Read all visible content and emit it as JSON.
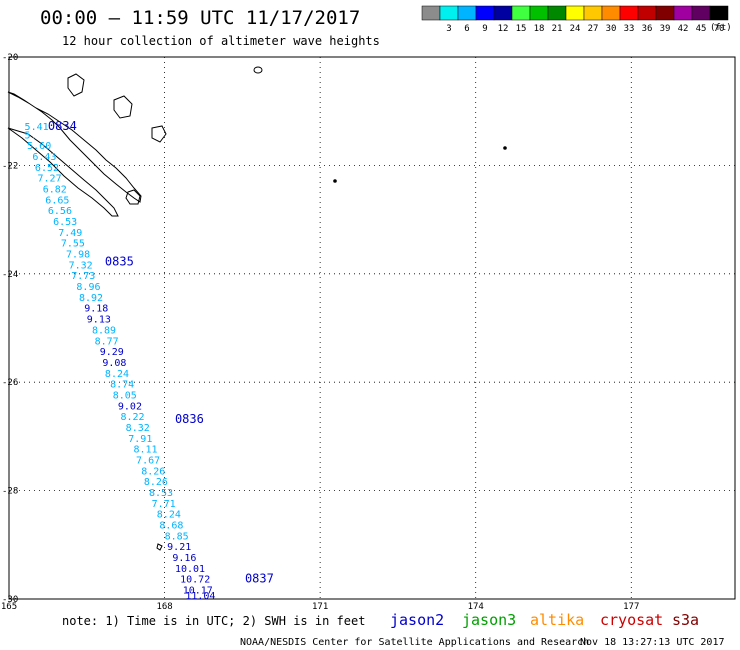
{
  "header": {
    "title": "00:00 – 11:59 UTC 11/17/2017",
    "subtitle": "12 hour collection of altimeter wave heights"
  },
  "legend": {
    "units": "(ft)",
    "swatches": [
      {
        "color": "#8c8c8c",
        "label": ""
      },
      {
        "color": "#00f0f0",
        "label": "3"
      },
      {
        "color": "#00b4ff",
        "label": "6"
      },
      {
        "color": "#0000ff",
        "label": "9"
      },
      {
        "color": "#0000a0",
        "label": "12"
      },
      {
        "color": "#40ff40",
        "label": "15"
      },
      {
        "color": "#00c000",
        "label": "18"
      },
      {
        "color": "#008800",
        "label": "21"
      },
      {
        "color": "#ffff00",
        "label": "24"
      },
      {
        "color": "#ffc800",
        "label": "27"
      },
      {
        "color": "#ff8c00",
        "label": "30"
      },
      {
        "color": "#ff0000",
        "label": "33"
      },
      {
        "color": "#c00000",
        "label": "36"
      },
      {
        "color": "#800000",
        "label": "39"
      },
      {
        "color": "#a000a0",
        "label": "42"
      },
      {
        "color": "#600060",
        "label": "45"
      },
      {
        "color": "#000000",
        "label": "70"
      }
    ]
  },
  "axes": {
    "lat_labels": [
      "-20",
      "-22",
      "-24",
      "-26",
      "-28",
      "-30"
    ],
    "lon_labels": [
      "165",
      "168",
      "171",
      "174",
      "177"
    ]
  },
  "chart_data": {
    "type": "scatter",
    "lon_range": [
      165,
      179
    ],
    "lat_range": [
      -30,
      -20
    ],
    "pass_labels": [
      {
        "text": "0834",
        "lon": 165.75,
        "lat": -21.35
      },
      {
        "text": "0835",
        "lon": 166.85,
        "lat": -23.85
      },
      {
        "text": "0836",
        "lon": 168.2,
        "lat": -26.75
      },
      {
        "text": "0837",
        "lon": 169.55,
        "lat": -29.7
      }
    ],
    "swh_points": [
      {
        "lon": 165.3,
        "lat": -21.35,
        "value": "5.41",
        "color": "#00b4ff"
      },
      {
        "lon": 165.3,
        "lat": -21.5,
        "value": "5.",
        "color": "#00b4ff"
      },
      {
        "lon": 165.35,
        "lat": -21.7,
        "value": "5.60",
        "color": "#00b4ff"
      },
      {
        "lon": 165.45,
        "lat": -21.9,
        "value": "6.43",
        "color": "#00b4ff"
      },
      {
        "lon": 165.5,
        "lat": -22.1,
        "value": "6.52",
        "color": "#00b4ff"
      },
      {
        "lon": 165.55,
        "lat": -22.3,
        "value": "7.27",
        "color": "#00b4ff"
      },
      {
        "lon": 165.65,
        "lat": -22.5,
        "value": "6.82",
        "color": "#00b4ff"
      },
      {
        "lon": 165.7,
        "lat": -22.7,
        "value": "6.65",
        "color": "#00b4ff"
      },
      {
        "lon": 165.75,
        "lat": -22.9,
        "value": "6.56",
        "color": "#00b4ff"
      },
      {
        "lon": 165.85,
        "lat": -23.1,
        "value": "6.53",
        "color": "#00b4ff"
      },
      {
        "lon": 165.95,
        "lat": -23.3,
        "value": "7.49",
        "color": "#00b4ff"
      },
      {
        "lon": 166.0,
        "lat": -23.5,
        "value": "7.55",
        "color": "#00b4ff"
      },
      {
        "lon": 166.1,
        "lat": -23.7,
        "value": "7.98",
        "color": "#00b4ff"
      },
      {
        "lon": 166.15,
        "lat": -23.9,
        "value": "7.32",
        "color": "#00b4ff"
      },
      {
        "lon": 166.2,
        "lat": -24.1,
        "value": "7.73",
        "color": "#00b4ff"
      },
      {
        "lon": 166.3,
        "lat": -24.3,
        "value": "8.96",
        "color": "#00b4ff"
      },
      {
        "lon": 166.35,
        "lat": -24.5,
        "value": "8.92",
        "color": "#00b4ff"
      },
      {
        "lon": 166.45,
        "lat": -24.7,
        "value": "9.18",
        "color": "#0000cc"
      },
      {
        "lon": 166.5,
        "lat": -24.9,
        "value": "9.13",
        "color": "#0000cc"
      },
      {
        "lon": 166.6,
        "lat": -25.1,
        "value": "8.89",
        "color": "#00b4ff"
      },
      {
        "lon": 166.65,
        "lat": -25.3,
        "value": "8.77",
        "color": "#00b4ff"
      },
      {
        "lon": 166.75,
        "lat": -25.5,
        "value": "9.29",
        "color": "#0000cc"
      },
      {
        "lon": 166.8,
        "lat": -25.7,
        "value": "9.08",
        "color": "#0000cc"
      },
      {
        "lon": 166.85,
        "lat": -25.9,
        "value": "8.24",
        "color": "#00b4ff"
      },
      {
        "lon": 166.95,
        "lat": -26.1,
        "value": "8.74",
        "color": "#00b4ff"
      },
      {
        "lon": 167.0,
        "lat": -26.3,
        "value": "8.05",
        "color": "#00b4ff"
      },
      {
        "lon": 167.1,
        "lat": -26.5,
        "value": "9.02",
        "color": "#0000cc"
      },
      {
        "lon": 167.15,
        "lat": -26.7,
        "value": "8.22",
        "color": "#00b4ff"
      },
      {
        "lon": 167.25,
        "lat": -26.9,
        "value": "8.32",
        "color": "#00b4ff"
      },
      {
        "lon": 167.3,
        "lat": -27.1,
        "value": "7.91",
        "color": "#00b4ff"
      },
      {
        "lon": 167.4,
        "lat": -27.3,
        "value": "8.11",
        "color": "#00b4ff"
      },
      {
        "lon": 167.45,
        "lat": -27.5,
        "value": "7.67",
        "color": "#00b4ff"
      },
      {
        "lon": 167.55,
        "lat": -27.7,
        "value": "8.26",
        "color": "#00b4ff"
      },
      {
        "lon": 167.6,
        "lat": -27.9,
        "value": "8.26",
        "color": "#00b4ff"
      },
      {
        "lon": 167.7,
        "lat": -28.1,
        "value": "8.53",
        "color": "#00b4ff"
      },
      {
        "lon": 167.75,
        "lat": -28.3,
        "value": "7.71",
        "color": "#00b4ff"
      },
      {
        "lon": 167.85,
        "lat": -28.5,
        "value": "8.24",
        "color": "#00b4ff"
      },
      {
        "lon": 167.9,
        "lat": -28.7,
        "value": "8.68",
        "color": "#00b4ff"
      },
      {
        "lon": 168.0,
        "lat": -28.9,
        "value": "8.85",
        "color": "#00b4ff"
      },
      {
        "lon": 168.05,
        "lat": -29.1,
        "value": "9.21",
        "color": "#0000cc"
      },
      {
        "lon": 168.15,
        "lat": -29.3,
        "value": "9.16",
        "color": "#0000cc"
      },
      {
        "lon": 168.2,
        "lat": -29.5,
        "value": "10.01",
        "color": "#0000cc"
      },
      {
        "lon": 168.3,
        "lat": -29.7,
        "value": "10.72",
        "color": "#0000cc"
      },
      {
        "lon": 168.35,
        "lat": -29.9,
        "value": "10.17",
        "color": "#0000cc"
      },
      {
        "lon": 168.4,
        "lat": -30.0,
        "value": "11.04",
        "color": "#0000cc"
      }
    ]
  },
  "footer": {
    "note": "note: 1) Time is in UTC; 2) SWH is in feet",
    "satellites": [
      {
        "name": "jason2",
        "color": "#0000cc"
      },
      {
        "name": "jason3",
        "color": "#00a000"
      },
      {
        "name": "altika",
        "color": "#ff8c00"
      },
      {
        "name": "cryosat",
        "color": "#cc0000"
      },
      {
        "name": "s3a",
        "color": "#800000"
      }
    ],
    "credit": "NOAA/NESDIS Center for Satellite Applications and Research",
    "timestamp": "Nov 18 13:27:13 UTC 2017"
  }
}
